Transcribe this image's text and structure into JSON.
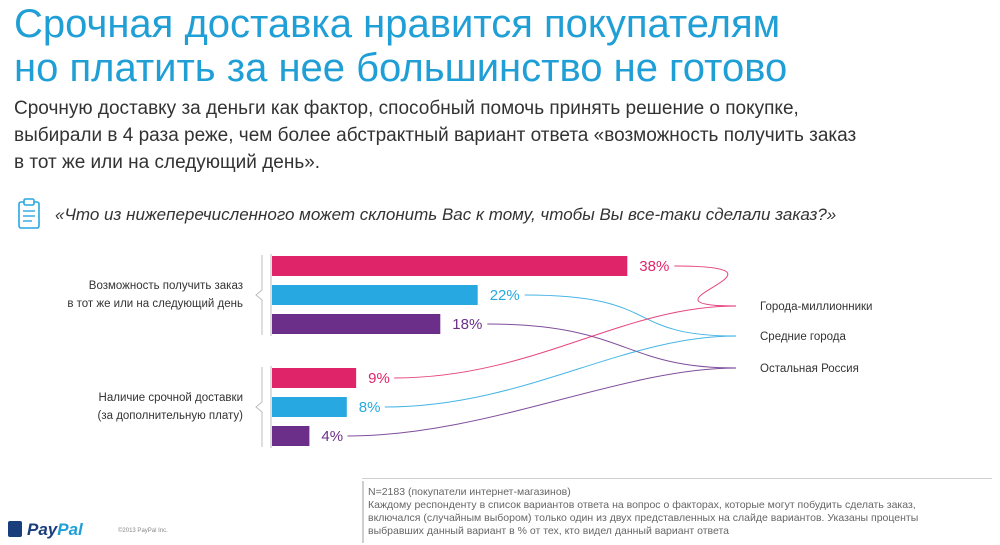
{
  "header": {
    "title_line1": "Срочная доставка нравится покупателям",
    "title_line2": "но платить за нее большинство не готово"
  },
  "lead": {
    "line1": "Срочную доставку за деньги как фактор, способный помочь принять решение о покупке,",
    "line2": "выбирали в 4 раза реже, чем более абстрактный вариант ответа «возможность получить заказ",
    "line3": "в тот же или на следующий день»."
  },
  "question": {
    "icon": "clipboard-icon",
    "text": "«Что из нижеперечисленного может склонить Вас к тому, чтобы Вы все-таки сделали заказ?»"
  },
  "chart_data": {
    "type": "bar",
    "orientation": "horizontal",
    "title": "",
    "groups": [
      {
        "label_line1": "Возможность получить заказ",
        "label_line2": "в тот же или на следующий день"
      },
      {
        "label_line1": "Наличие срочной доставки",
        "label_line2": "(за дополнительную плату)"
      }
    ],
    "series": [
      {
        "name": "Города-миллионники",
        "color": "#e0246a",
        "values": [
          38,
          9
        ]
      },
      {
        "name": "Средние города",
        "color": "#27a8e0",
        "values": [
          22,
          8
        ]
      },
      {
        "name": "Остальная Россия",
        "color": "#6b2f8a",
        "values": [
          18,
          4
        ]
      }
    ],
    "value_labels": [
      [
        "38%",
        "22%",
        "18%"
      ],
      [
        "9%",
        "8%",
        "4%"
      ]
    ],
    "unit": "%",
    "xlim": [
      0,
      40
    ],
    "legend_position": "right",
    "grid": false
  },
  "footer": {
    "sample": "N=2183 (покупатели интернет-магазинов)",
    "note_line1": "Каждому респонденту в список вариантов ответа на вопрос о факторах, которые могут побудить сделать заказ,",
    "note_line2": "включался (случайным выбором) только один из двух представленных на слайде вариантов. Указаны проценты",
    "note_line3": "выбравших данный вариант в % от тех, кто видел данный вариант ответа"
  },
  "branding": {
    "logo_pay": "Pay",
    "logo_pal": "Pal",
    "copyright": "©2013 PayPal Inc."
  }
}
